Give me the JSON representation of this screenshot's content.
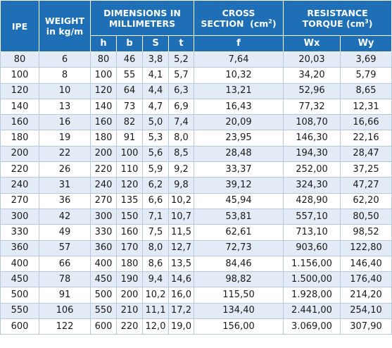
{
  "headers": {
    "ipe": "IPE",
    "weight_line1": "WEIGHT",
    "weight_line2": "in kg/m",
    "dimensions_line1": "DIMENSIONS IN",
    "dimensions_line2": "MILLIMETERS",
    "cross_line1": "CROSS",
    "cross_line2": "SECTION  (cm",
    "cross_sup": "2",
    "cross_close": ")",
    "resistance_line1": "RESISTANCE",
    "resistance_line2": "TORQUE (cm",
    "resistance_sup": "3",
    "resistance_close": ")",
    "sub": [
      "h",
      "b",
      "S",
      "t",
      "f",
      "Wx",
      "Wy"
    ]
  },
  "rows": [
    [
      "80",
      "6",
      "80",
      "46",
      "3,8",
      "5,2",
      "7,64",
      "20,03",
      "3,69"
    ],
    [
      "100",
      "8",
      "100",
      "55",
      "4,1",
      "5,7",
      "10,32",
      "34,20",
      "5,79"
    ],
    [
      "120",
      "10",
      "120",
      "64",
      "4,4",
      "6,3",
      "13,21",
      "52,96",
      "8,65"
    ],
    [
      "140",
      "13",
      "140",
      "73",
      "4,7",
      "6,9",
      "16,43",
      "77,32",
      "12,31"
    ],
    [
      "160",
      "16",
      "160",
      "82",
      "5,0",
      "7,4",
      "20,09",
      "108,70",
      "16,66"
    ],
    [
      "180",
      "19",
      "180",
      "91",
      "5,3",
      "8,0",
      "23,95",
      "146,30",
      "22,16"
    ],
    [
      "200",
      "22",
      "200",
      "100",
      "5,6",
      "8,5",
      "28,48",
      "194,30",
      "28,47"
    ],
    [
      "220",
      "26",
      "220",
      "110",
      "5,9",
      "9,2",
      "33,37",
      "252,00",
      "37,25"
    ],
    [
      "240",
      "31",
      "240",
      "120",
      "6,2",
      "9,8",
      "39,12",
      "324,30",
      "47,27"
    ],
    [
      "270",
      "36",
      "270",
      "135",
      "6,6",
      "10,2",
      "45,94",
      "428,90",
      "62,20"
    ],
    [
      "300",
      "42",
      "300",
      "150",
      "7,1",
      "10,7",
      "53,81",
      "557,10",
      "80,50"
    ],
    [
      "330",
      "49",
      "330",
      "160",
      "7,5",
      "11,5",
      "62,61",
      "713,10",
      "98,52"
    ],
    [
      "360",
      "57",
      "360",
      "170",
      "8,0",
      "12,7",
      "72,73",
      "903,60",
      "122,80"
    ],
    [
      "400",
      "66",
      "400",
      "180",
      "8,6",
      "13,5",
      "84,46",
      "1.156,00",
      "146,40"
    ],
    [
      "450",
      "78",
      "450",
      "190",
      "9,4",
      "14,6",
      "98,82",
      "1.500,00",
      "176,40"
    ],
    [
      "500",
      "91",
      "500",
      "200",
      "10,2",
      "16,0",
      "115,50",
      "1.928,00",
      "214,20"
    ],
    [
      "550",
      "106",
      "550",
      "210",
      "11,1",
      "17,2",
      "134,40",
      "2.441,00",
      "254,10"
    ],
    [
      "600",
      "122",
      "600",
      "220",
      "12,0",
      "19,0",
      "156,00",
      "3.069,00",
      "307,90"
    ]
  ]
}
